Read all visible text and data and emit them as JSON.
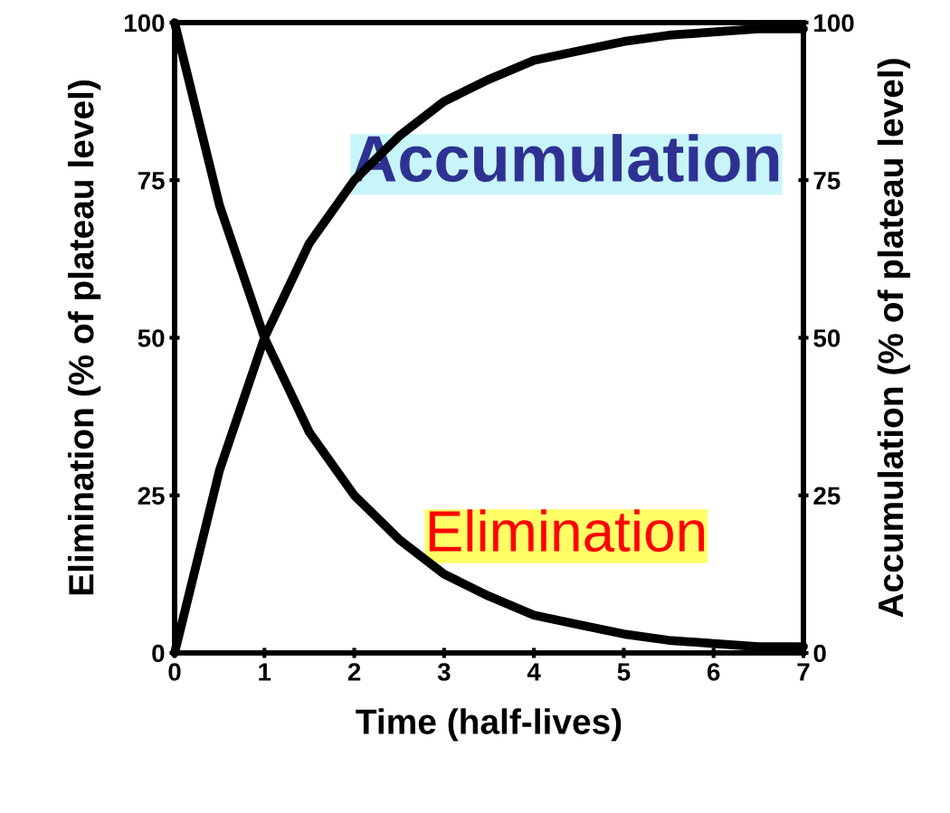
{
  "chart_data": {
    "type": "line",
    "xlabel": "Time (half-lives)",
    "ylabel": "Elimination (% of plateau level)",
    "y2label": "Accumulation (% of plateau level)",
    "series": [
      {
        "name": "Accumulation",
        "color": "#000000",
        "x": [
          0,
          0.5,
          1,
          1.5,
          2,
          2.5,
          3,
          3.5,
          4,
          4.5,
          5,
          5.5,
          6,
          6.5,
          7
        ],
        "values": [
          0,
          29,
          50,
          65,
          75,
          82,
          87.5,
          91,
          94,
          95.5,
          97,
          98,
          98.5,
          99,
          99
        ],
        "axis": "y2"
      },
      {
        "name": "Elimination",
        "color": "#000000",
        "x": [
          0,
          0.5,
          1,
          1.5,
          2,
          2.5,
          3,
          3.5,
          4,
          4.5,
          5,
          5.5,
          6,
          6.5,
          7
        ],
        "values": [
          100,
          71,
          50,
          35,
          25,
          18,
          12.5,
          9,
          6,
          4.5,
          3,
          2,
          1.5,
          1,
          1
        ]
      }
    ],
    "xlim": [
      0,
      7
    ],
    "xticks": [
      0,
      1,
      2,
      3,
      4,
      5,
      6,
      7
    ],
    "ylim": [
      0,
      100
    ],
    "yticks": [
      0,
      25,
      50,
      75,
      100
    ],
    "y2lim": [
      0,
      100
    ],
    "y2ticks": [
      0,
      25,
      50,
      75,
      100
    ],
    "grid": false,
    "legend": false,
    "marker": "none",
    "line_style": "solid"
  }
}
